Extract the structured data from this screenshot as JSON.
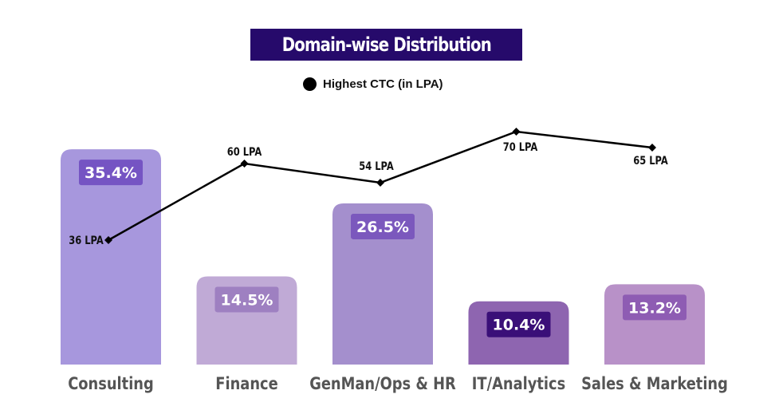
{
  "chart_data": {
    "type": "bar",
    "title": "Domain-wise Distribution",
    "categories": [
      "Consulting",
      "Finance",
      "GenMan/Ops & HR",
      "IT/Analytics",
      "Sales & Marketing"
    ],
    "values": [
      35.4,
      14.5,
      26.5,
      10.4,
      13.2
    ],
    "value_labels": [
      "35.4%",
      "14.5%",
      "26.5%",
      "10.4%",
      "13.2%"
    ],
    "ylim": [
      0,
      40
    ],
    "grid": false,
    "legend_position": "top-center",
    "bar_colors": [
      "#a797dd",
      "#c0aad6",
      "#a48fcd",
      "#8e65b0",
      "#b891c8"
    ],
    "badge_colors": [
      "#7554c3",
      "#9e80c1",
      "#7b58bd",
      "#3a0f78",
      "#8e5cb3"
    ],
    "line_series": {
      "name": "Highest CTC (in LPA)",
      "values": [
        36,
        60,
        54,
        70,
        65
      ],
      "labels": [
        "36 LPA",
        "60 LPA",
        "54 LPA",
        "70 LPA",
        "65 LPA"
      ],
      "ylim": [
        10,
        90
      ],
      "color": "#000000"
    },
    "title_bg_color": "#260a6b",
    "axis_label_color": "#555555"
  }
}
